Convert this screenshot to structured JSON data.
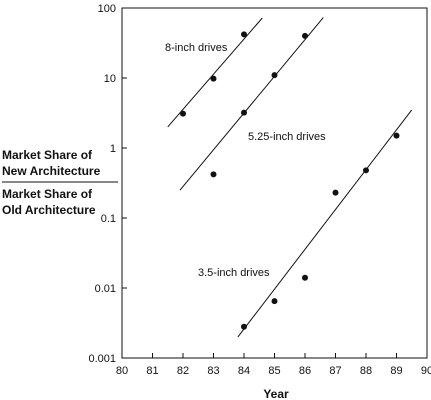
{
  "chart_data": {
    "type": "scatter",
    "xlabel": "Year",
    "ylabel": {
      "top": [
        "Market Share of",
        "New Architecture"
      ],
      "bottom": [
        "Market Share of",
        "Old Architecture"
      ]
    },
    "yscale": "log",
    "xlim": [
      80,
      90
    ],
    "ylim": [
      0.001,
      100
    ],
    "x_ticks": [
      80,
      81,
      82,
      83,
      84,
      85,
      86,
      87,
      88,
      89,
      90
    ],
    "y_ticks": [
      {
        "value": 0.001,
        "label": "0.001"
      },
      {
        "value": 0.01,
        "label": "0.01"
      },
      {
        "value": 0.1,
        "label": "0.1"
      },
      {
        "value": 1,
        "label": "1"
      },
      {
        "value": 10,
        "label": "10"
      },
      {
        "value": 100,
        "label": "100"
      }
    ],
    "series": [
      {
        "name": "8-inch drives",
        "points": [
          [
            82,
            3.1
          ],
          [
            83,
            9.8
          ],
          [
            84,
            42
          ]
        ],
        "trend": [
          [
            81.5,
            2.0
          ],
          [
            84.6,
            72
          ]
        ]
      },
      {
        "name": "5.25-inch drives",
        "points": [
          [
            83,
            0.42
          ],
          [
            84,
            3.2
          ],
          [
            85,
            11
          ],
          [
            86,
            40
          ]
        ],
        "trend": [
          [
            81.9,
            0.25
          ],
          [
            86.6,
            73
          ]
        ]
      },
      {
        "name": "3.5-inch drives",
        "points": [
          [
            84,
            0.0028
          ],
          [
            85,
            0.0065
          ],
          [
            86,
            0.014
          ],
          [
            87,
            0.23
          ],
          [
            88,
            0.48
          ],
          [
            89,
            1.5
          ]
        ],
        "trend": [
          [
            83.8,
            0.002
          ],
          [
            89.5,
            3.5
          ]
        ]
      }
    ]
  }
}
